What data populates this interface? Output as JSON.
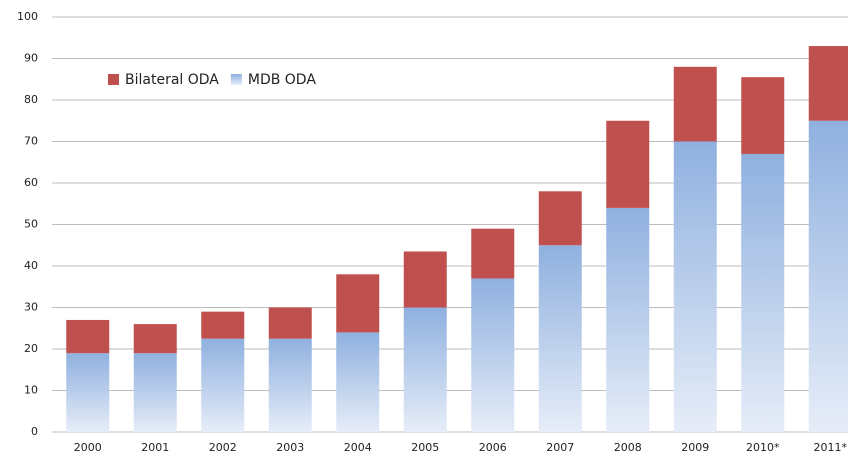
{
  "chart_data": {
    "type": "stacked_bar",
    "categories": [
      "2000",
      "2001",
      "2002",
      "2003",
      "2004",
      "2005",
      "2006",
      "2007",
      "2008",
      "2009",
      "2010*",
      "2011*"
    ],
    "series": [
      {
        "name": "Bilateral ODA",
        "color": "#c0504d",
        "values": [
          8,
          7,
          6.5,
          7.5,
          14,
          13.5,
          12,
          13,
          21,
          18,
          18.5,
          18
        ]
      },
      {
        "name": "MDB ODA",
        "color": "#a7bfe6",
        "values": [
          19,
          19,
          22.5,
          22.5,
          24,
          30,
          37,
          45,
          54,
          70,
          67,
          75
        ]
      }
    ],
    "ylim": [
      0,
      100
    ],
    "yticks": [
      0,
      10,
      20,
      30,
      40,
      50,
      60,
      70,
      80,
      90,
      100
    ],
    "grid": true,
    "legend": "top-left"
  }
}
